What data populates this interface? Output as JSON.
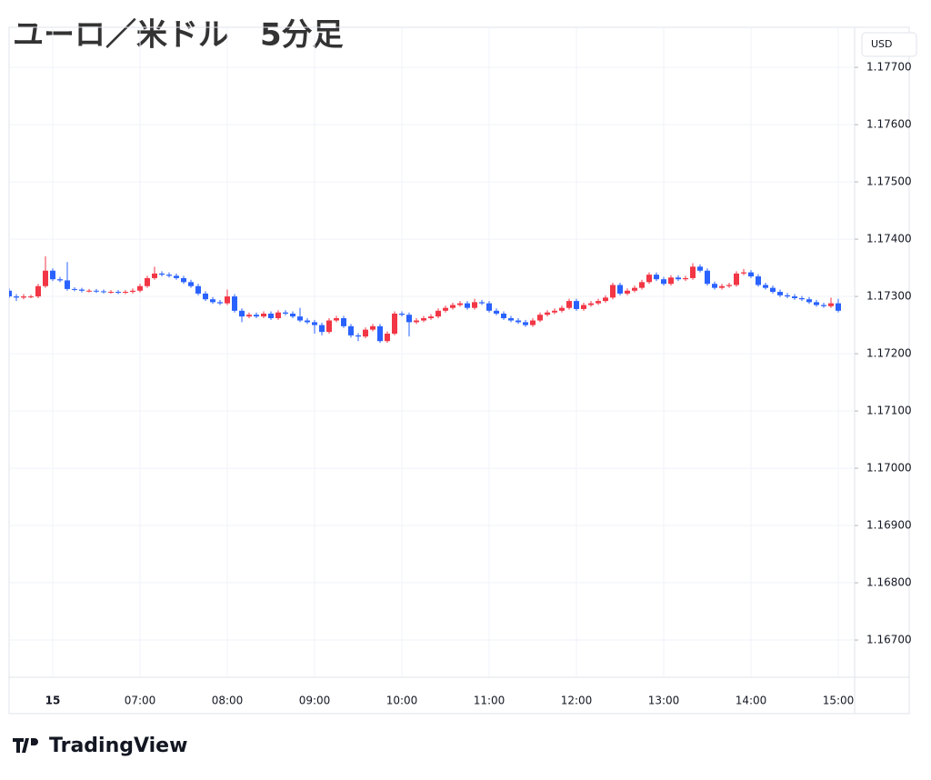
{
  "title": "ユーロ／米ドル　5分足",
  "chart_data": {
    "type": "candlestick",
    "currency": "USD",
    "categories": [
      null,
      null,
      null,
      null,
      null,
      null,
      "15",
      null,
      null,
      null,
      null,
      null,
      null,
      null,
      null,
      null,
      null,
      null,
      "07:00",
      null,
      null,
      null,
      null,
      null,
      null,
      null,
      null,
      null,
      null,
      null,
      "08:00",
      null,
      null,
      null,
      null,
      null,
      null,
      null,
      null,
      null,
      null,
      null,
      "09:00",
      null,
      null,
      null,
      null,
      null,
      null,
      null,
      null,
      null,
      null,
      null,
      "10:00",
      null,
      null,
      null,
      null,
      null,
      null,
      null,
      null,
      null,
      null,
      null,
      "11:00",
      null,
      null,
      null,
      null,
      null,
      null,
      null,
      null,
      null,
      null,
      null,
      "12:00",
      null,
      null,
      null,
      null,
      null,
      null,
      null,
      null,
      null,
      null,
      null,
      "13:00",
      null,
      null,
      null,
      null,
      null,
      null,
      null,
      null,
      null,
      null,
      null,
      "14:00",
      null,
      null,
      null,
      null,
      null,
      null,
      null,
      null,
      null,
      null,
      null,
      "15:00"
    ],
    "open": [
      1.1731,
      1.173,
      1.17298,
      1.173,
      1.173,
      1.17318,
      1.17345,
      1.1733,
      1.17328,
      1.17313,
      1.17312,
      1.1731,
      1.1731,
      1.17309,
      1.17308,
      1.17308,
      1.17307,
      1.17308,
      1.1731,
      1.17318,
      1.17332,
      1.1734,
      1.17338,
      1.17336,
      1.17332,
      1.17325,
      1.17318,
      1.17305,
      1.17295,
      1.1729,
      1.17288,
      1.173,
      1.17275,
      1.17265,
      1.17268,
      1.17265,
      1.1727,
      1.17262,
      1.17272,
      1.1727,
      1.17265,
      1.17258,
      1.17255,
      1.1725,
      1.17238,
      1.17258,
      1.17262,
      1.17248,
      1.17232,
      1.1723,
      1.17242,
      1.17248,
      1.17222,
      1.17235,
      1.1727,
      1.17268,
      1.17255,
      1.17258,
      1.17262,
      1.17265,
      1.17275,
      1.1728,
      1.17285,
      1.17288,
      1.1728,
      1.1729,
      1.17288,
      1.17275,
      1.1727,
      1.17262,
      1.17258,
      1.17255,
      1.1725,
      1.17258,
      1.17268,
      1.17272,
      1.17275,
      1.1728,
      1.17292,
      1.17278,
      1.17285,
      1.17288,
      1.17292,
      1.17298,
      1.1732,
      1.17305,
      1.1731,
      1.17315,
      1.17325,
      1.17338,
      1.1733,
      1.17322,
      1.17333,
      1.1733,
      1.17332,
      1.17352,
      1.17345,
      1.17322,
      1.17315,
      1.17318,
      1.1732,
      1.1734,
      1.17342,
      1.17335,
      1.1732,
      1.17315,
      1.17308,
      1.17302,
      1.173,
      1.17297,
      1.17295,
      1.1729,
      1.17285,
      1.17283,
      1.17288
    ],
    "high": [
      1.17314,
      1.17304,
      1.17304,
      1.17303,
      1.17322,
      1.1737,
      1.17349,
      1.17334,
      1.1736,
      1.17316,
      1.17315,
      1.17313,
      1.17313,
      1.17312,
      1.17311,
      1.17311,
      1.17311,
      1.17314,
      1.17322,
      1.17336,
      1.17352,
      1.17344,
      1.17342,
      1.1734,
      1.17336,
      1.17329,
      1.17322,
      1.17309,
      1.17299,
      1.17294,
      1.17312,
      1.17304,
      1.17279,
      1.17272,
      1.17272,
      1.17274,
      1.17274,
      1.17276,
      1.17276,
      1.17274,
      1.1728,
      1.17262,
      1.17259,
      1.17254,
      1.17262,
      1.17266,
      1.17266,
      1.17252,
      1.17236,
      1.17246,
      1.17252,
      1.17252,
      1.17239,
      1.17274,
      1.17274,
      1.17272,
      1.17262,
      1.17266,
      1.17269,
      1.17279,
      1.17284,
      1.17289,
      1.17292,
      1.17292,
      1.17296,
      1.17294,
      1.17292,
      1.17279,
      1.17274,
      1.17266,
      1.17262,
      1.17259,
      1.17262,
      1.17272,
      1.17276,
      1.17279,
      1.17284,
      1.17296,
      1.17296,
      1.17289,
      1.17292,
      1.17296,
      1.17302,
      1.17324,
      1.17324,
      1.17314,
      1.17319,
      1.17329,
      1.17342,
      1.17342,
      1.17334,
      1.17337,
      1.17337,
      1.17336,
      1.17358,
      1.17356,
      1.17349,
      1.17326,
      1.17322,
      1.17324,
      1.17344,
      1.17348,
      1.17346,
      1.17339,
      1.17324,
      1.17319,
      1.17312,
      1.17306,
      1.17304,
      1.17301,
      1.17299,
      1.17294,
      1.17289,
      1.17298,
      1.17296
    ],
    "low": [
      1.17297,
      1.17292,
      1.17295,
      1.17297,
      1.17297,
      1.17315,
      1.17327,
      1.17325,
      1.1731,
      1.17309,
      1.17307,
      1.17307,
      1.17306,
      1.17305,
      1.17305,
      1.17304,
      1.17304,
      1.17305,
      1.17307,
      1.17315,
      1.17329,
      1.17335,
      1.17333,
      1.17329,
      1.17322,
      1.17315,
      1.17302,
      1.17292,
      1.17287,
      1.17285,
      1.17285,
      1.17272,
      1.17255,
      1.17262,
      1.17262,
      1.17262,
      1.17259,
      1.17259,
      1.17267,
      1.17262,
      1.17255,
      1.17252,
      1.17235,
      1.17232,
      1.17235,
      1.17255,
      1.17245,
      1.17228,
      1.17222,
      1.17227,
      1.17239,
      1.17219,
      1.17219,
      1.17232,
      1.17265,
      1.1723,
      1.17252,
      1.17255,
      1.17259,
      1.17262,
      1.17272,
      1.17277,
      1.17282,
      1.17277,
      1.17277,
      1.17285,
      1.17272,
      1.17267,
      1.17259,
      1.17255,
      1.17252,
      1.17247,
      1.17247,
      1.17255,
      1.17265,
      1.17269,
      1.17272,
      1.17277,
      1.17275,
      1.17275,
      1.17282,
      1.17285,
      1.17289,
      1.17295,
      1.17302,
      1.17302,
      1.17307,
      1.17312,
      1.17322,
      1.17327,
      1.17319,
      1.17319,
      1.17327,
      1.17327,
      1.17329,
      1.17342,
      1.17319,
      1.17312,
      1.17312,
      1.17315,
      1.17317,
      1.17337,
      1.17332,
      1.17317,
      1.17312,
      1.17305,
      1.17299,
      1.17297,
      1.17294,
      1.17292,
      1.17287,
      1.17282,
      1.1728,
      1.1728,
      1.17272
    ],
    "close": [
      1.173,
      1.17298,
      1.173,
      1.173,
      1.17318,
      1.17345,
      1.1733,
      1.17328,
      1.17313,
      1.17312,
      1.1731,
      1.1731,
      1.17309,
      1.17308,
      1.17308,
      1.17307,
      1.17308,
      1.1731,
      1.17318,
      1.17332,
      1.1734,
      1.17338,
      1.17336,
      1.17332,
      1.17325,
      1.17318,
      1.17305,
      1.17295,
      1.1729,
      1.17288,
      1.173,
      1.17275,
      1.17265,
      1.17268,
      1.17265,
      1.1727,
      1.17262,
      1.17272,
      1.1727,
      1.17265,
      1.17258,
      1.17255,
      1.1725,
      1.17238,
      1.17258,
      1.17262,
      1.17248,
      1.17232,
      1.1723,
      1.17242,
      1.17248,
      1.17222,
      1.17235,
      1.1727,
      1.17268,
      1.17255,
      1.17258,
      1.17262,
      1.17265,
      1.17275,
      1.1728,
      1.17285,
      1.17288,
      1.1728,
      1.1729,
      1.17288,
      1.17275,
      1.1727,
      1.17262,
      1.17258,
      1.17255,
      1.1725,
      1.17258,
      1.17268,
      1.17272,
      1.17275,
      1.1728,
      1.17292,
      1.17278,
      1.17285,
      1.17288,
      1.17292,
      1.17298,
      1.1732,
      1.17305,
      1.1731,
      1.17315,
      1.17325,
      1.17338,
      1.1733,
      1.17322,
      1.17333,
      1.1733,
      1.17332,
      1.17352,
      1.17345,
      1.17322,
      1.17315,
      1.17318,
      1.1732,
      1.1734,
      1.17342,
      1.17335,
      1.1732,
      1.17315,
      1.17308,
      1.17302,
      1.173,
      1.17297,
      1.17295,
      1.1729,
      1.17285,
      1.17283,
      1.17288,
      1.17275
    ],
    "up_color": "#f23645",
    "down_color": "#2962ff",
    "ylim": [
      1.16635,
      1.1777
    ],
    "yticks": [
      {
        "value": 1.177,
        "label": "1.17700"
      },
      {
        "value": 1.176,
        "label": "1.17600"
      },
      {
        "value": 1.175,
        "label": "1.17500"
      },
      {
        "value": 1.174,
        "label": "1.17400"
      },
      {
        "value": 1.173,
        "label": "1.17300"
      },
      {
        "value": 1.172,
        "label": "1.17200"
      },
      {
        "value": 1.171,
        "label": "1.17100"
      },
      {
        "value": 1.17,
        "label": "1.17000"
      },
      {
        "value": 1.169,
        "label": "1.16900"
      },
      {
        "value": 1.168,
        "label": "1.16800"
      },
      {
        "value": 1.167,
        "label": "1.16700"
      }
    ],
    "grid": true
  },
  "footer": {
    "brand": "TradingView"
  }
}
